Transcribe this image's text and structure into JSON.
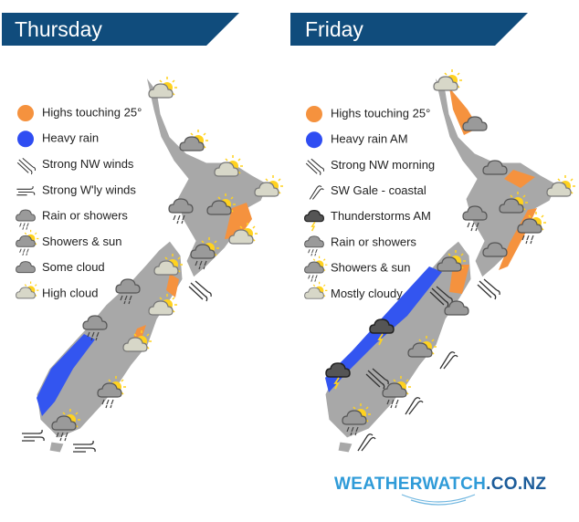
{
  "panels": [
    {
      "title": "Thursday",
      "legend": [
        "Highs touching 25°",
        "Heavy rain",
        "Strong NW winds",
        "Strong W'ly winds",
        "Rain or showers",
        "Showers & sun",
        "Some cloud",
        "High cloud"
      ]
    },
    {
      "title": "Friday",
      "legend": [
        "Highs touching 25°",
        "Heavy rain AM",
        "Strong NW morning",
        "SW Gale - coastal",
        "Thunderstorms AM",
        "Rain or showers",
        "Showers & sun",
        "Mostly cloudy"
      ]
    }
  ],
  "footer": {
    "logo": [
      "WEATHERWATCH",
      ".CO.NZ"
    ]
  }
}
